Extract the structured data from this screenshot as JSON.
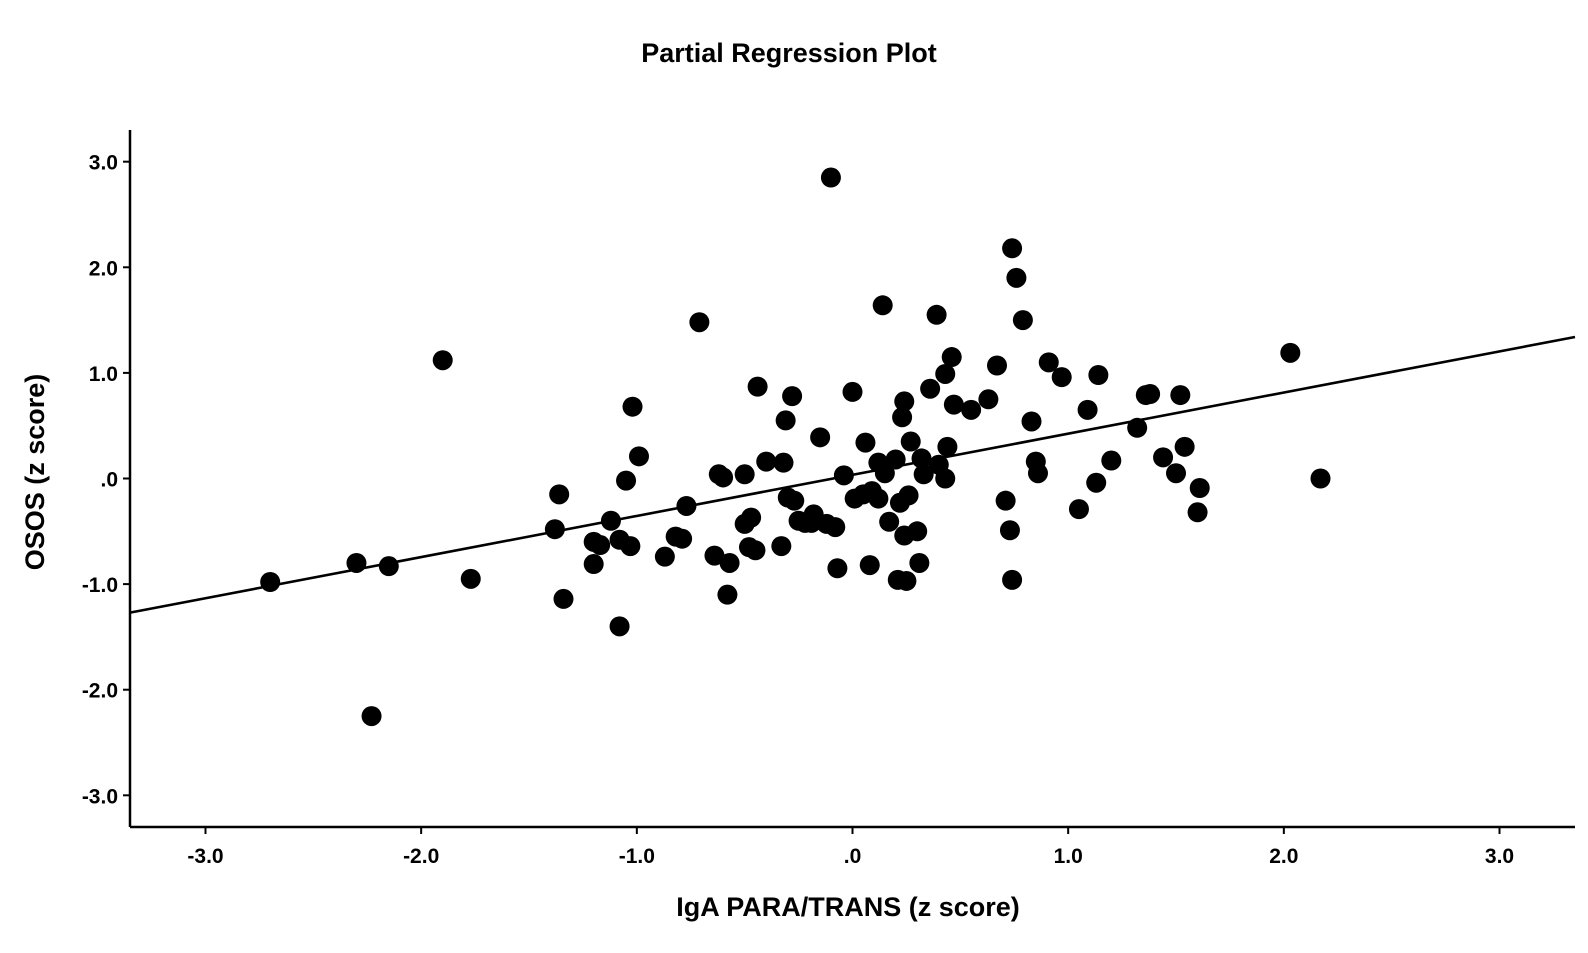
{
  "chart_data": {
    "type": "scatter",
    "title": "Partial Regression Plot",
    "xlabel": "IgA PARA/TRANS (z score)",
    "ylabel": "OSOS (z score)",
    "xlim": [
      -3.35,
      3.35
    ],
    "ylim": [
      -3.3,
      3.3
    ],
    "x_ticks": [
      {
        "value": -3,
        "label": "-3.0"
      },
      {
        "value": -2,
        "label": "-2.0"
      },
      {
        "value": -1,
        "label": "-1.0"
      },
      {
        "value": 0,
        "label": ".0"
      },
      {
        "value": 1,
        "label": "1.0"
      },
      {
        "value": 2,
        "label": "2.0"
      },
      {
        "value": 3,
        "label": "3.0"
      }
    ],
    "y_ticks": [
      {
        "value": 3,
        "label": "3.0"
      },
      {
        "value": 2,
        "label": "2.0"
      },
      {
        "value": 1,
        "label": "1.0"
      },
      {
        "value": 0,
        "label": ".0"
      },
      {
        "value": -1,
        "label": "-1.0"
      },
      {
        "value": -2,
        "label": "-2.0"
      },
      {
        "value": -3,
        "label": "-3.0"
      }
    ],
    "grid": false,
    "legend": "none",
    "marker_color": "#000000",
    "line_color": "#000000",
    "fit_line": {
      "x": [
        -3.35,
        3.35
      ],
      "y": [
        -1.27,
        1.34
      ]
    },
    "points": [
      [
        -2.7,
        -0.98
      ],
      [
        -2.3,
        -0.8
      ],
      [
        -2.15,
        -0.83
      ],
      [
        -2.23,
        -2.25
      ],
      [
        -1.9,
        1.12
      ],
      [
        -1.77,
        -0.95
      ],
      [
        -1.38,
        -0.48
      ],
      [
        -1.36,
        -0.15
      ],
      [
        -1.34,
        -1.14
      ],
      [
        -1.2,
        -0.6
      ],
      [
        -1.2,
        -0.81
      ],
      [
        -1.17,
        -0.63
      ],
      [
        -1.12,
        -0.4
      ],
      [
        -1.08,
        -0.58
      ],
      [
        -1.08,
        -1.4
      ],
      [
        -1.05,
        -0.02
      ],
      [
        -1.03,
        -0.64
      ],
      [
        -1.02,
        0.68
      ],
      [
        -0.99,
        0.21
      ],
      [
        -0.87,
        -0.74
      ],
      [
        -0.82,
        -0.55
      ],
      [
        -0.79,
        -0.57
      ],
      [
        -0.77,
        -0.26
      ],
      [
        -0.71,
        1.48
      ],
      [
        -0.64,
        -0.73
      ],
      [
        -0.62,
        0.04
      ],
      [
        -0.6,
        0.01
      ],
      [
        -0.58,
        -1.1
      ],
      [
        -0.57,
        -0.8
      ],
      [
        -0.5,
        0.04
      ],
      [
        -0.5,
        -0.43
      ],
      [
        -0.48,
        -0.65
      ],
      [
        -0.47,
        -0.37
      ],
      [
        -0.45,
        -0.68
      ],
      [
        -0.44,
        0.87
      ],
      [
        -0.4,
        0.16
      ],
      [
        -0.33,
        -0.64
      ],
      [
        -0.32,
        0.15
      ],
      [
        -0.31,
        0.55
      ],
      [
        -0.3,
        -0.18
      ],
      [
        -0.28,
        0.78
      ],
      [
        -0.27,
        -0.21
      ],
      [
        -0.25,
        -0.4
      ],
      [
        -0.22,
        -0.42
      ],
      [
        -0.19,
        -0.42
      ],
      [
        -0.18,
        -0.34
      ],
      [
        -0.15,
        0.39
      ],
      [
        -0.12,
        -0.43
      ],
      [
        -0.1,
        2.85
      ],
      [
        -0.08,
        -0.46
      ],
      [
        -0.07,
        -0.85
      ],
      [
        -0.04,
        0.03
      ],
      [
        0.0,
        0.82
      ],
      [
        0.01,
        -0.19
      ],
      [
        0.05,
        -0.15
      ],
      [
        0.06,
        0.34
      ],
      [
        0.08,
        -0.82
      ],
      [
        0.09,
        -0.12
      ],
      [
        0.12,
        0.15
      ],
      [
        0.12,
        -0.19
      ],
      [
        0.14,
        1.64
      ],
      [
        0.15,
        0.05
      ],
      [
        0.17,
        -0.41
      ],
      [
        0.2,
        0.18
      ],
      [
        0.21,
        -0.96
      ],
      [
        0.22,
        -0.23
      ],
      [
        0.23,
        0.58
      ],
      [
        0.24,
        0.73
      ],
      [
        0.24,
        -0.54
      ],
      [
        0.25,
        -0.97
      ],
      [
        0.26,
        -0.16
      ],
      [
        0.27,
        0.35
      ],
      [
        0.3,
        -0.5
      ],
      [
        0.31,
        -0.8
      ],
      [
        0.32,
        0.19
      ],
      [
        0.33,
        0.04
      ],
      [
        0.36,
        0.85
      ],
      [
        0.39,
        1.55
      ],
      [
        0.4,
        0.13
      ],
      [
        0.43,
        0.99
      ],
      [
        0.43,
        0.0
      ],
      [
        0.44,
        0.3
      ],
      [
        0.46,
        1.15
      ],
      [
        0.47,
        0.7
      ],
      [
        0.55,
        0.65
      ],
      [
        0.63,
        0.75
      ],
      [
        0.67,
        1.07
      ],
      [
        0.71,
        -0.21
      ],
      [
        0.73,
        -0.49
      ],
      [
        0.74,
        2.18
      ],
      [
        0.74,
        -0.96
      ],
      [
        0.76,
        1.9
      ],
      [
        0.79,
        1.5
      ],
      [
        0.83,
        0.54
      ],
      [
        0.85,
        0.16
      ],
      [
        0.86,
        0.05
      ],
      [
        0.91,
        1.1
      ],
      [
        0.97,
        0.96
      ],
      [
        1.05,
        -0.29
      ],
      [
        1.09,
        0.65
      ],
      [
        1.13,
        -0.04
      ],
      [
        1.14,
        0.98
      ],
      [
        1.2,
        0.17
      ],
      [
        1.32,
        0.48
      ],
      [
        1.36,
        0.79
      ],
      [
        1.38,
        0.8
      ],
      [
        1.44,
        0.2
      ],
      [
        1.5,
        0.05
      ],
      [
        1.52,
        0.79
      ],
      [
        1.54,
        0.3
      ],
      [
        1.6,
        -0.32
      ],
      [
        1.61,
        -0.09
      ],
      [
        2.03,
        1.19
      ],
      [
        2.17,
        0.0
      ]
    ]
  }
}
